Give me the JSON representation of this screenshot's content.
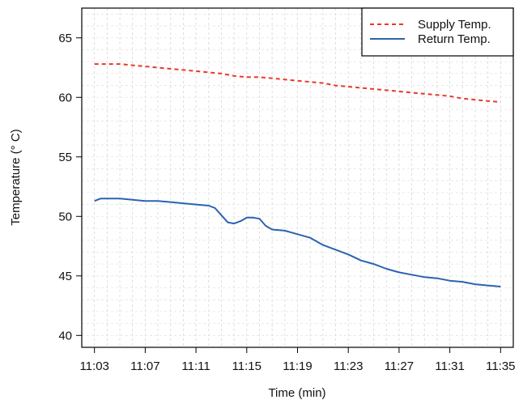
{
  "chart_data": {
    "type": "line",
    "title": "",
    "xlabel": "Time (min)",
    "ylabel": "Temperature (° C)",
    "xlim": [
      "11:02",
      "11:36"
    ],
    "ylim": [
      39,
      67.5
    ],
    "x_ticks": [
      "11:03",
      "11:07",
      "11:11",
      "11:15",
      "11:19",
      "11:23",
      "11:27",
      "11:31",
      "11:35"
    ],
    "y_ticks": [
      40,
      45,
      50,
      55,
      60,
      65
    ],
    "grid": true,
    "legend_position": "top-right",
    "series": [
      {
        "name": "Supply Temp.",
        "style": "dashed",
        "color": "#e8392a",
        "x": [
          "11:03",
          "11:04",
          "11:05",
          "11:06",
          "11:07",
          "11:08",
          "11:09",
          "11:10",
          "11:11",
          "11:12",
          "11:13",
          "11:14",
          "11:15",
          "11:16",
          "11:17",
          "11:18",
          "11:19",
          "11:20",
          "11:21",
          "11:22",
          "11:23",
          "11:24",
          "11:25",
          "11:26",
          "11:27",
          "11:28",
          "11:29",
          "11:30",
          "11:31",
          "11:32",
          "11:33",
          "11:34",
          "11:35"
        ],
        "y": [
          62.8,
          62.8,
          62.8,
          62.7,
          62.6,
          62.5,
          62.4,
          62.3,
          62.2,
          62.1,
          62.0,
          61.8,
          61.7,
          61.7,
          61.6,
          61.5,
          61.4,
          61.3,
          61.2,
          61.0,
          60.9,
          60.8,
          60.7,
          60.6,
          60.5,
          60.4,
          60.3,
          60.2,
          60.1,
          59.9,
          59.8,
          59.7,
          59.6
        ]
      },
      {
        "name": "Return Temp.",
        "style": "solid",
        "color": "#2b63b0",
        "x": [
          "11:03",
          "11:03.5",
          "11:04",
          "11:05",
          "11:06",
          "11:07",
          "11:08",
          "11:09",
          "11:10",
          "11:11",
          "11:12",
          "11:12.5",
          "11:13",
          "11:13.5",
          "11:14",
          "11:14.5",
          "11:15",
          "11:15.5",
          "11:16",
          "11:16.5",
          "11:17",
          "11:18",
          "11:19",
          "11:20",
          "11:21",
          "11:22",
          "11:23",
          "11:24",
          "11:25",
          "11:26",
          "11:27",
          "11:28",
          "11:29",
          "11:30",
          "11:31",
          "11:32",
          "11:33",
          "11:34",
          "11:35"
        ],
        "y": [
          51.3,
          51.5,
          51.5,
          51.5,
          51.4,
          51.3,
          51.3,
          51.2,
          51.1,
          51.0,
          50.9,
          50.7,
          50.1,
          49.5,
          49.4,
          49.6,
          49.9,
          49.9,
          49.8,
          49.2,
          48.9,
          48.8,
          48.5,
          48.2,
          47.6,
          47.2,
          46.8,
          46.3,
          46.0,
          45.6,
          45.3,
          45.1,
          44.9,
          44.8,
          44.6,
          44.5,
          44.3,
          44.2,
          44.1
        ]
      }
    ]
  }
}
